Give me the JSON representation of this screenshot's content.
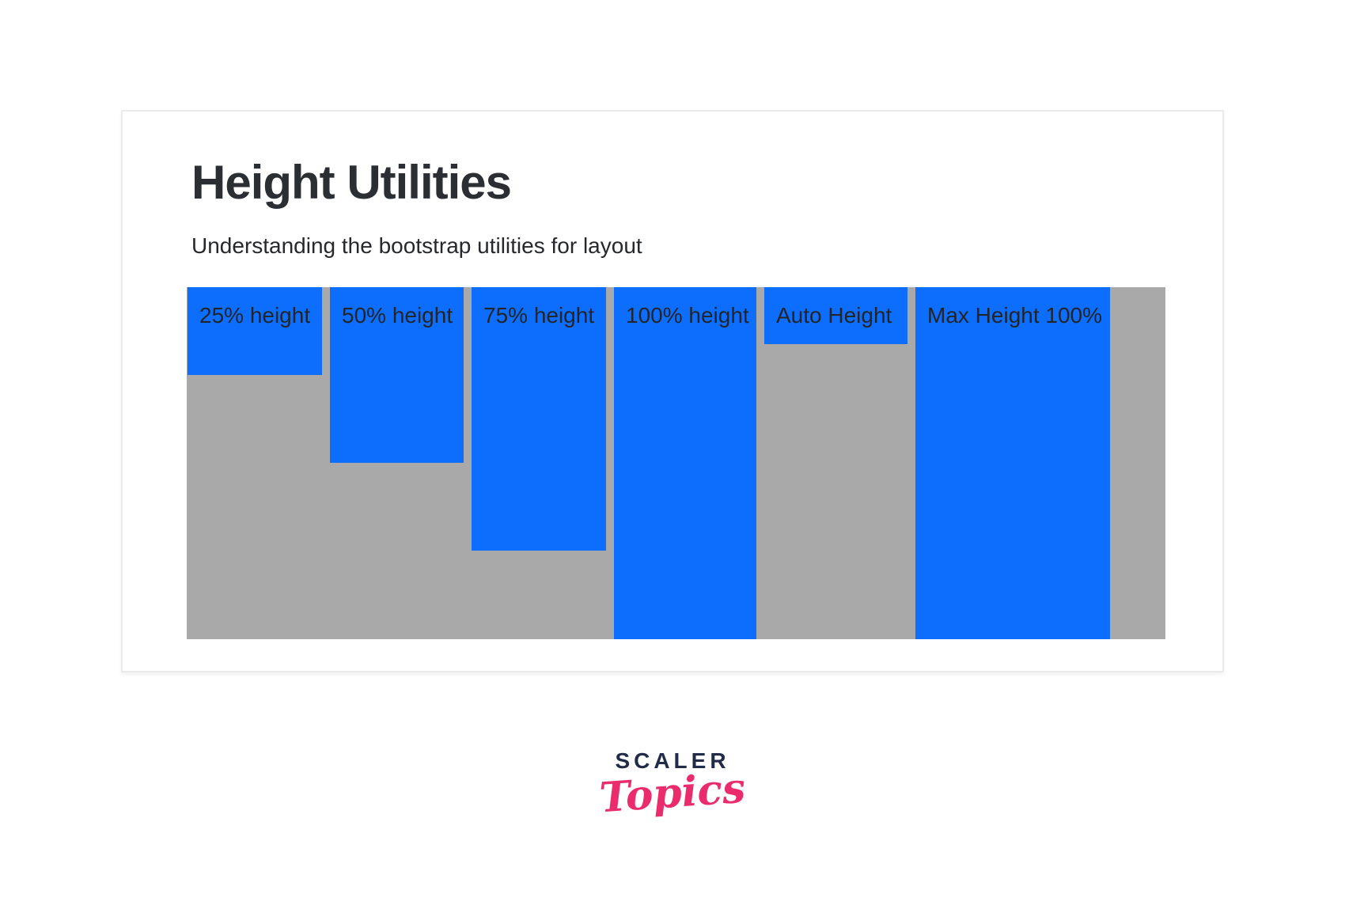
{
  "card": {
    "title": "Height Utilities",
    "subtitle": "Understanding the bootstrap utilities for layout"
  },
  "demo": {
    "container_color": "#a9a9a9",
    "box_color": "#0d6efd",
    "box_text_color": "#212529",
    "boxes": [
      {
        "label": "25% height",
        "height": "25%"
      },
      {
        "label": "50% height",
        "height": "50%"
      },
      {
        "label": "75% height",
        "height": "75%"
      },
      {
        "label": "100% height",
        "height": "100%"
      },
      {
        "label": "Auto Height",
        "height": "auto"
      },
      {
        "label": "Max Height 100%",
        "height": "100%"
      }
    ]
  },
  "logo": {
    "brand": "SCALER",
    "script": "Topics",
    "brand_color": "#222b48",
    "script_color": "#ea2c6d"
  }
}
